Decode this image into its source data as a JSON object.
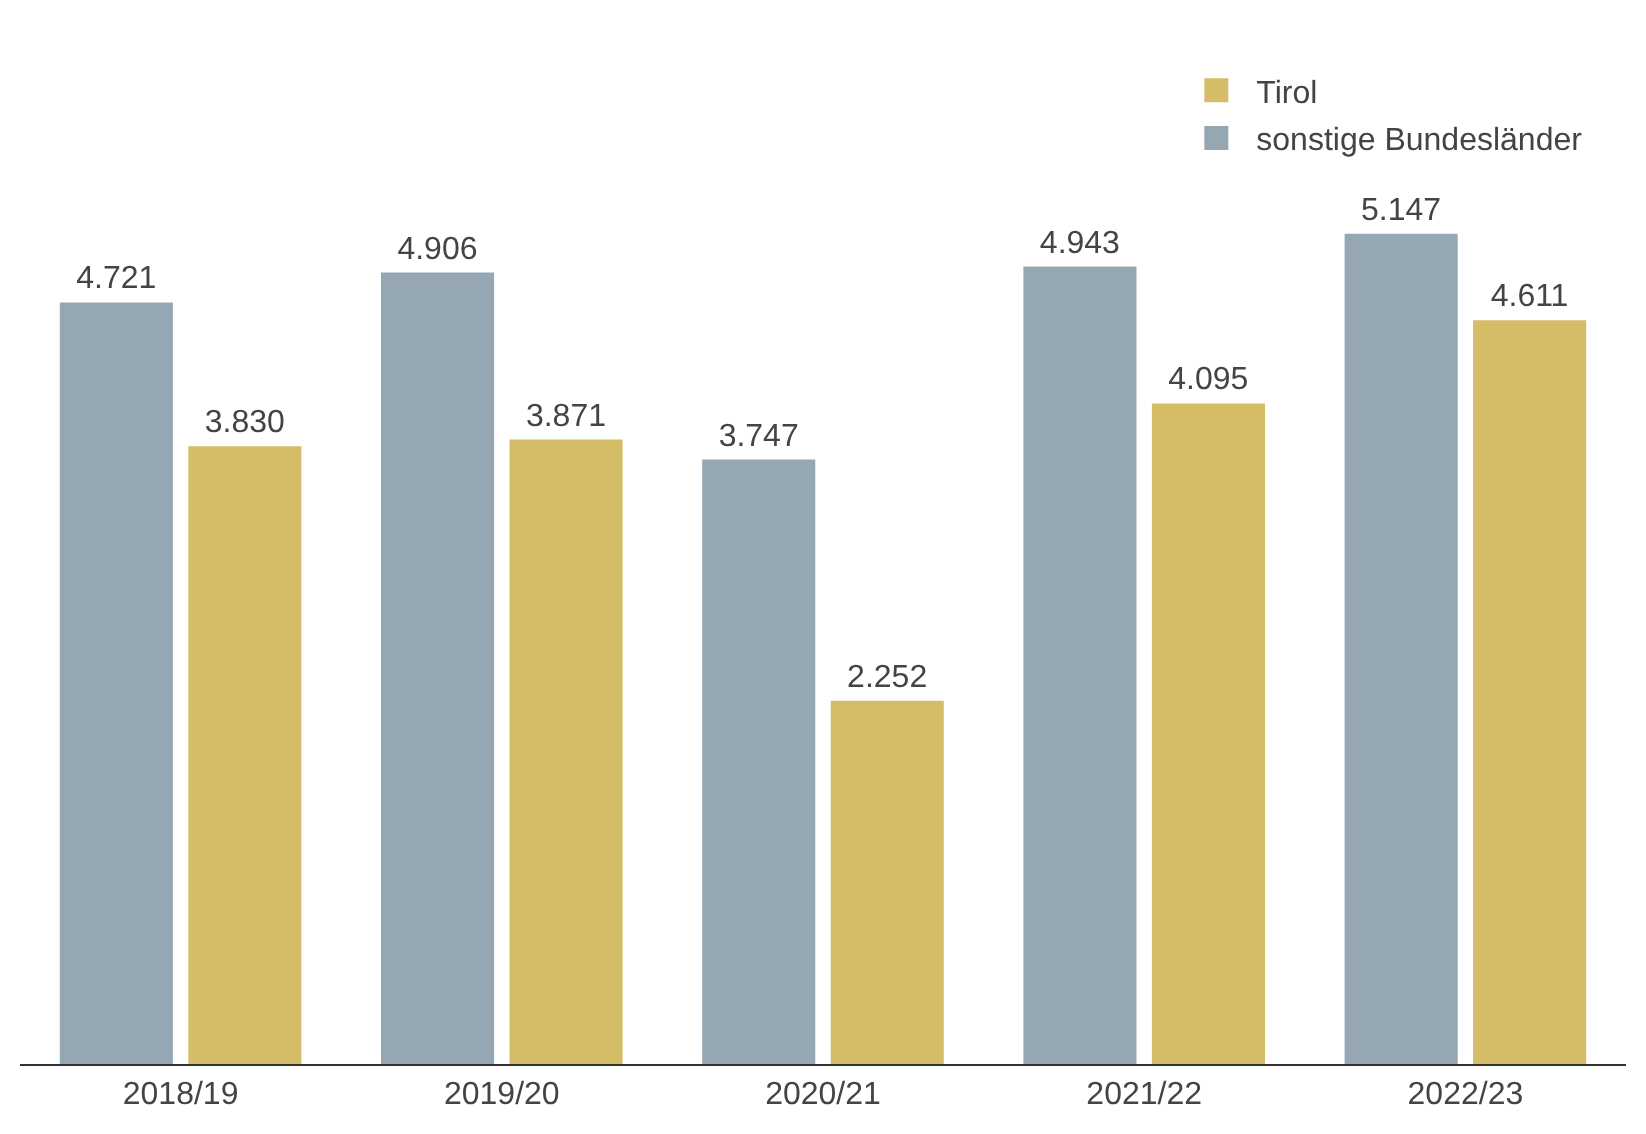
{
  "chart_data": {
    "type": "bar",
    "categories": [
      "2018/19",
      "2019/20",
      "2020/21",
      "2021/22",
      "2022/23"
    ],
    "series": [
      {
        "name": "sonstige Bundesländer",
        "color": "#95a7b2",
        "values": [
          4.721,
          4.906,
          3.747,
          4.943,
          5.147
        ],
        "value_labels": [
          "4.721",
          "4.906",
          "3.747",
          "4.943",
          "5.147"
        ]
      },
      {
        "name": "Tirol",
        "color": "#d4bd66",
        "values": [
          3.83,
          3.871,
          2.252,
          4.095,
          4.611
        ],
        "value_labels": [
          "3.830",
          "3.871",
          "2.252",
          "4.095",
          "4.611"
        ]
      }
    ],
    "grid": false,
    "legend": "top right",
    "tick_labels": "x"
  }
}
